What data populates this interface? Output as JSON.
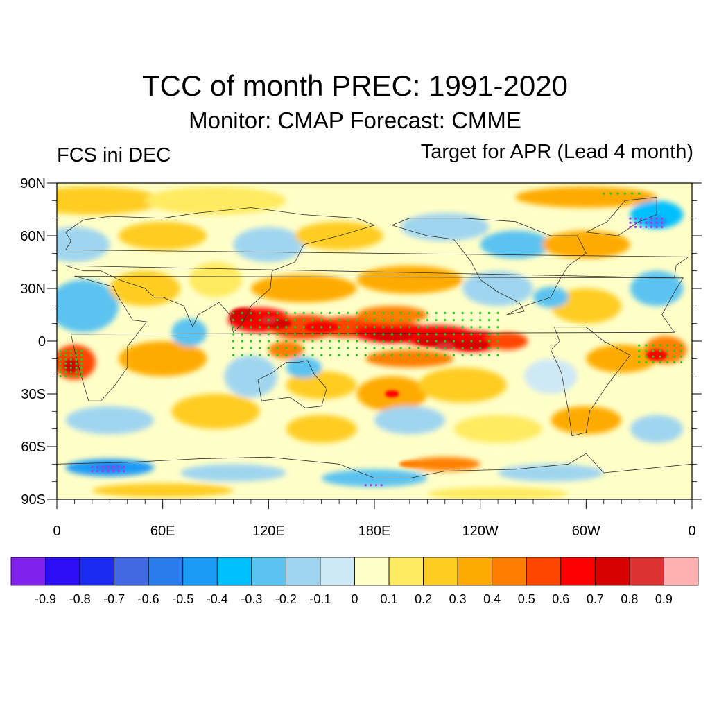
{
  "header": {
    "title": "TCC of month PREC: 1991-2020",
    "subtitle": "Monitor: CMAP   Forecast: CMME",
    "left_label": "FCS ini DEC",
    "right_label": "Target for APR (Lead 4 month)"
  },
  "chart_data": {
    "type": "heatmap",
    "title": "TCC of month PREC: 1991-2020",
    "subtitle": "Monitor: CMAP   Forecast: CMME",
    "left_string": "FCS ini DEC",
    "right_string": "Target for APR (Lead 4 month)",
    "variable": "Temporal correlation coefficient (TCC) of monthly precipitation",
    "projection": "cylindrical equidistant, global",
    "x_range": [
      0,
      360
    ],
    "y_range": [
      -90,
      90
    ],
    "x_ticks": [
      "0",
      "60E",
      "120E",
      "180E",
      "120W",
      "60W",
      "0"
    ],
    "x_tick_values": [
      0,
      60,
      120,
      180,
      240,
      300,
      360
    ],
    "y_ticks": [
      "90N",
      "60N",
      "30N",
      "0",
      "30S",
      "60S",
      "90S"
    ],
    "y_tick_values": [
      90,
      60,
      30,
      0,
      -30,
      -60,
      -90
    ],
    "colorbar": {
      "levels": [
        -0.9,
        -0.8,
        -0.7,
        -0.6,
        -0.5,
        -0.4,
        -0.3,
        -0.2,
        -0.1,
        0,
        0.1,
        0.2,
        0.3,
        0.4,
        0.5,
        0.6,
        0.7,
        0.8,
        0.9
      ],
      "labels": [
        "-0.9",
        "-0.8",
        "-0.7",
        "-0.6",
        "-0.5",
        "-0.4",
        "-0.3",
        "-0.2",
        "-0.1",
        "0",
        "0.1",
        "0.2",
        "0.3",
        "0.4",
        "0.5",
        "0.6",
        "0.7",
        "0.8",
        "0.9"
      ],
      "colors": [
        "#8021EE",
        "#2D0FF5",
        "#1A2AF0",
        "#4169E1",
        "#2A7BEB",
        "#1A9BF5",
        "#00BFFF",
        "#5BC3F0",
        "#A0D5F0",
        "#CFE8F5",
        "#FFFFC8",
        "#FFEA60",
        "#FFCC22",
        "#FFAA00",
        "#FF7F00",
        "#FF4500",
        "#FF0000",
        "#D80000",
        "#DC3232",
        "#FFB0B0"
      ],
      "placement": "bottom"
    },
    "stippling": {
      "positive_significant_color": "#22CC22",
      "negative_significant_color": "#AA33EE"
    },
    "features": [
      {
        "region": "Tropical Pacific / Maritime Continent band (~90E-120W, 20N-10S)",
        "tcc": "0.6-0.8"
      },
      {
        "region": "Equatorial central-eastern Pacific (~180-90W, 0-10S)",
        "tcc": "0.6-0.8"
      },
      {
        "region": "Equatorial Atlantic / West Africa coast",
        "tcc": "0.5-0.7"
      },
      {
        "region": "Southern Ocean near Antarctica (~0-60E, 70S)",
        "tcc": "-0.3 to -0.6"
      },
      {
        "region": "Greenland / North Atlantic",
        "tcc": "-0.3 to -0.5"
      },
      {
        "region": "Most extratropical areas",
        "tcc": "-0.3 to 0.3"
      }
    ]
  }
}
